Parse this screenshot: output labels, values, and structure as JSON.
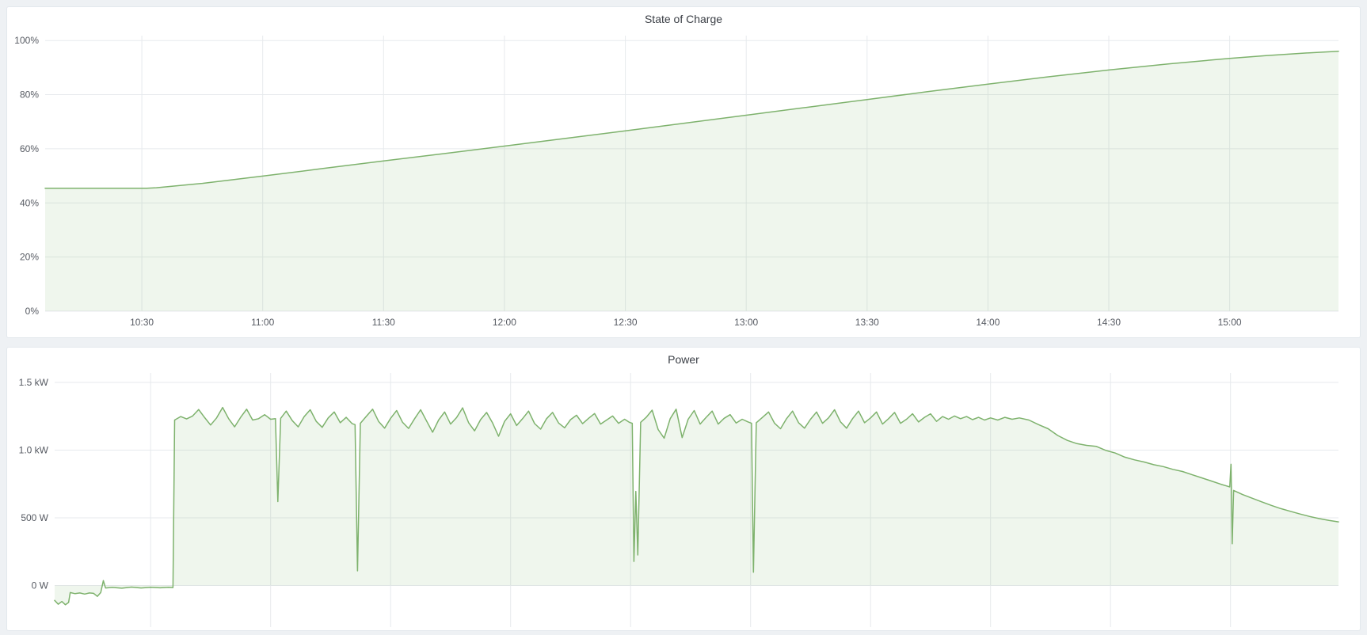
{
  "page": {
    "background_color": "#eef1f4",
    "panel_background_color": "#ffffff"
  },
  "chart_data": [
    {
      "type": "area",
      "title": "State of Charge",
      "unit": "percent",
      "legend_position": "none",
      "grid": true,
      "line_color": "#7eb26d",
      "fill_color": "rgba(126,178,109,0.12)",
      "x_domain": [
        10.1,
        15.45
      ],
      "y_domain": [
        0,
        101.8
      ],
      "x_ticks": [
        {
          "t": 10.5,
          "label": "10:30"
        },
        {
          "t": 11.0,
          "label": "11:00"
        },
        {
          "t": 11.5,
          "label": "11:30"
        },
        {
          "t": 12.0,
          "label": "12:00"
        },
        {
          "t": 12.5,
          "label": "12:30"
        },
        {
          "t": 13.0,
          "label": "13:00"
        },
        {
          "t": 13.5,
          "label": "13:30"
        },
        {
          "t": 14.0,
          "label": "14:00"
        },
        {
          "t": 14.5,
          "label": "14:30"
        },
        {
          "t": 15.0,
          "label": "15:00"
        }
      ],
      "y_ticks": [
        {
          "v": 0,
          "label": "0%"
        },
        {
          "v": 20,
          "label": "20%"
        },
        {
          "v": 40,
          "label": "40%"
        },
        {
          "v": 60,
          "label": "60%"
        },
        {
          "v": 80,
          "label": "80%"
        },
        {
          "v": 100,
          "label": "100%"
        }
      ],
      "series": [
        {
          "name": "State of Charge",
          "points": [
            [
              10.1,
              45.4
            ],
            [
              10.25,
              45.4
            ],
            [
              10.4,
              45.4
            ],
            [
              10.52,
              45.4
            ],
            [
              10.56,
              45.6
            ],
            [
              10.75,
              47.2
            ],
            [
              11.0,
              49.9
            ],
            [
              11.25,
              52.7
            ],
            [
              11.5,
              55.5
            ],
            [
              11.75,
              58.2
            ],
            [
              12.0,
              61.0
            ],
            [
              12.25,
              63.8
            ],
            [
              12.5,
              66.6
            ],
            [
              12.75,
              69.5
            ],
            [
              13.0,
              72.4
            ],
            [
              13.25,
              75.3
            ],
            [
              13.5,
              78.2
            ],
            [
              13.75,
              81.1
            ],
            [
              14.0,
              83.9
            ],
            [
              14.25,
              86.6
            ],
            [
              14.5,
              89.1
            ],
            [
              14.75,
              91.4
            ],
            [
              15.0,
              93.4
            ],
            [
              15.15,
              94.4
            ],
            [
              15.3,
              95.3
            ],
            [
              15.45,
              96.0
            ]
          ]
        }
      ]
    },
    {
      "type": "area",
      "title": "Power",
      "unit": "watt",
      "legend_position": "none",
      "grid": true,
      "line_color": "#7eb26d",
      "fill_color": "rgba(126,178,109,0.12)",
      "x_domain": [
        10.1,
        15.45
      ],
      "y_domain": [
        -307,
        1570
      ],
      "x_ticks": [
        {
          "t": 10.5,
          "label": "10:30"
        },
        {
          "t": 11.0,
          "label": "11:00"
        },
        {
          "t": 11.5,
          "label": "11:30"
        },
        {
          "t": 12.0,
          "label": "12:00"
        },
        {
          "t": 12.5,
          "label": "12:30"
        },
        {
          "t": 13.0,
          "label": "13:00"
        },
        {
          "t": 13.5,
          "label": "13:30"
        },
        {
          "t": 14.0,
          "label": "14:00"
        },
        {
          "t": 14.5,
          "label": "14:30"
        },
        {
          "t": 15.0,
          "label": "15:00"
        }
      ],
      "y_ticks": [
        {
          "v": 0,
          "label": "0 W"
        },
        {
          "v": 500,
          "label": "500 W"
        },
        {
          "v": 1000,
          "label": "1.0 kW"
        },
        {
          "v": 1500,
          "label": "1.5 kW"
        }
      ],
      "series": [
        {
          "name": "Power",
          "points": [
            [
              10.1,
              -110
            ],
            [
              10.115,
              -138
            ],
            [
              10.13,
              -118
            ],
            [
              10.145,
              -142
            ],
            [
              10.158,
              -125
            ],
            [
              10.165,
              -52
            ],
            [
              10.185,
              -60
            ],
            [
              10.205,
              -55
            ],
            [
              10.225,
              -63
            ],
            [
              10.245,
              -55
            ],
            [
              10.262,
              -58
            ],
            [
              10.278,
              -80
            ],
            [
              10.292,
              -52
            ],
            [
              10.303,
              36
            ],
            [
              10.312,
              -18
            ],
            [
              10.34,
              -14
            ],
            [
              10.38,
              -20
            ],
            [
              10.42,
              -12
            ],
            [
              10.46,
              -18
            ],
            [
              10.5,
              -13
            ],
            [
              10.54,
              -17
            ],
            [
              10.575,
              -13
            ],
            [
              10.593,
              -15
            ],
            [
              10.6,
              1222
            ],
            [
              10.625,
              1248
            ],
            [
              10.65,
              1230
            ],
            [
              10.675,
              1252
            ],
            [
              10.7,
              1300
            ],
            [
              10.725,
              1240
            ],
            [
              10.75,
              1185
            ],
            [
              10.775,
              1238
            ],
            [
              10.8,
              1315
            ],
            [
              10.825,
              1232
            ],
            [
              10.85,
              1172
            ],
            [
              10.875,
              1242
            ],
            [
              10.9,
              1302
            ],
            [
              10.925,
              1222
            ],
            [
              10.95,
              1232
            ],
            [
              10.975,
              1262
            ],
            [
              11.0,
              1228
            ],
            [
              11.02,
              1232
            ],
            [
              11.03,
              620
            ],
            [
              11.042,
              1235
            ],
            [
              11.065,
              1288
            ],
            [
              11.09,
              1218
            ],
            [
              11.115,
              1172
            ],
            [
              11.14,
              1248
            ],
            [
              11.165,
              1298
            ],
            [
              11.19,
              1212
            ],
            [
              11.215,
              1168
            ],
            [
              11.24,
              1238
            ],
            [
              11.265,
              1282
            ],
            [
              11.29,
              1202
            ],
            [
              11.315,
              1242
            ],
            [
              11.34,
              1195
            ],
            [
              11.352,
              1188
            ],
            [
              11.362,
              108
            ],
            [
              11.374,
              1198
            ],
            [
              11.4,
              1252
            ],
            [
              11.425,
              1302
            ],
            [
              11.45,
              1212
            ],
            [
              11.475,
              1162
            ],
            [
              11.5,
              1235
            ],
            [
              11.525,
              1292
            ],
            [
              11.55,
              1205
            ],
            [
              11.575,
              1160
            ],
            [
              11.6,
              1232
            ],
            [
              11.625,
              1298
            ],
            [
              11.65,
              1215
            ],
            [
              11.675,
              1132
            ],
            [
              11.7,
              1222
            ],
            [
              11.725,
              1282
            ],
            [
              11.75,
              1192
            ],
            [
              11.775,
              1240
            ],
            [
              11.8,
              1312
            ],
            [
              11.825,
              1202
            ],
            [
              11.85,
              1142
            ],
            [
              11.875,
              1225
            ],
            [
              11.9,
              1278
            ],
            [
              11.925,
              1200
            ],
            [
              11.95,
              1102
            ],
            [
              11.975,
              1212
            ],
            [
              12.0,
              1268
            ],
            [
              12.025,
              1182
            ],
            [
              12.05,
              1232
            ],
            [
              12.075,
              1288
            ],
            [
              12.1,
              1196
            ],
            [
              12.125,
              1155
            ],
            [
              12.15,
              1232
            ],
            [
              12.175,
              1278
            ],
            [
              12.2,
              1200
            ],
            [
              12.225,
              1165
            ],
            [
              12.25,
              1225
            ],
            [
              12.275,
              1258
            ],
            [
              12.3,
              1195
            ],
            [
              12.325,
              1235
            ],
            [
              12.35,
              1270
            ],
            [
              12.375,
              1192
            ],
            [
              12.4,
              1222
            ],
            [
              12.425,
              1252
            ],
            [
              12.45,
              1198
            ],
            [
              12.475,
              1228
            ],
            [
              12.495,
              1205
            ],
            [
              12.507,
              1198
            ],
            [
              12.514,
              178
            ],
            [
              12.522,
              695
            ],
            [
              12.53,
              225
            ],
            [
              12.542,
              1205
            ],
            [
              12.565,
              1242
            ],
            [
              12.59,
              1295
            ],
            [
              12.615,
              1152
            ],
            [
              12.64,
              1088
            ],
            [
              12.665,
              1232
            ],
            [
              12.69,
              1302
            ],
            [
              12.715,
              1092
            ],
            [
              12.74,
              1228
            ],
            [
              12.765,
              1292
            ],
            [
              12.79,
              1192
            ],
            [
              12.815,
              1242
            ],
            [
              12.84,
              1288
            ],
            [
              12.865,
              1192
            ],
            [
              12.89,
              1235
            ],
            [
              12.915,
              1262
            ],
            [
              12.94,
              1200
            ],
            [
              12.965,
              1228
            ],
            [
              12.99,
              1208
            ],
            [
              13.004,
              1198
            ],
            [
              13.012,
              98
            ],
            [
              13.024,
              1202
            ],
            [
              13.05,
              1242
            ],
            [
              13.075,
              1282
            ],
            [
              13.1,
              1198
            ],
            [
              13.125,
              1158
            ],
            [
              13.15,
              1232
            ],
            [
              13.175,
              1288
            ],
            [
              13.2,
              1202
            ],
            [
              13.225,
              1162
            ],
            [
              13.25,
              1228
            ],
            [
              13.275,
              1282
            ],
            [
              13.3,
              1198
            ],
            [
              13.325,
              1238
            ],
            [
              13.35,
              1298
            ],
            [
              13.375,
              1208
            ],
            [
              13.4,
              1162
            ],
            [
              13.425,
              1232
            ],
            [
              13.45,
              1288
            ],
            [
              13.475,
              1202
            ],
            [
              13.5,
              1238
            ],
            [
              13.525,
              1282
            ],
            [
              13.55,
              1192
            ],
            [
              13.575,
              1232
            ],
            [
              13.6,
              1278
            ],
            [
              13.625,
              1198
            ],
            [
              13.65,
              1228
            ],
            [
              13.675,
              1268
            ],
            [
              13.7,
              1208
            ],
            [
              13.725,
              1242
            ],
            [
              13.75,
              1268
            ],
            [
              13.775,
              1212
            ],
            [
              13.8,
              1248
            ],
            [
              13.825,
              1228
            ],
            [
              13.85,
              1252
            ],
            [
              13.875,
              1232
            ],
            [
              13.9,
              1248
            ],
            [
              13.925,
              1225
            ],
            [
              13.95,
              1242
            ],
            [
              13.975,
              1222
            ],
            [
              14.0,
              1238
            ],
            [
              14.03,
              1222
            ],
            [
              14.06,
              1242
            ],
            [
              14.09,
              1228
            ],
            [
              14.12,
              1238
            ],
            [
              14.16,
              1222
            ],
            [
              14.2,
              1188
            ],
            [
              14.24,
              1158
            ],
            [
              14.28,
              1108
            ],
            [
              14.32,
              1072
            ],
            [
              14.36,
              1048
            ],
            [
              14.4,
              1035
            ],
            [
              14.44,
              1028
            ],
            [
              14.48,
              998
            ],
            [
              14.52,
              978
            ],
            [
              14.56,
              948
            ],
            [
              14.6,
              928
            ],
            [
              14.64,
              912
            ],
            [
              14.68,
              892
            ],
            [
              14.72,
              878
            ],
            [
              14.76,
              858
            ],
            [
              14.8,
              842
            ],
            [
              14.84,
              818
            ],
            [
              14.88,
              795
            ],
            [
              14.92,
              772
            ],
            [
              14.96,
              748
            ],
            [
              14.99,
              732
            ],
            [
              14.997,
              728
            ],
            [
              15.002,
              895
            ],
            [
              15.007,
              308
            ],
            [
              15.013,
              702
            ],
            [
              15.05,
              672
            ],
            [
              15.09,
              645
            ],
            [
              15.13,
              618
            ],
            [
              15.17,
              592
            ],
            [
              15.21,
              568
            ],
            [
              15.25,
              548
            ],
            [
              15.29,
              528
            ],
            [
              15.33,
              510
            ],
            [
              15.37,
              494
            ],
            [
              15.41,
              481
            ],
            [
              15.45,
              470
            ]
          ]
        }
      ]
    }
  ]
}
